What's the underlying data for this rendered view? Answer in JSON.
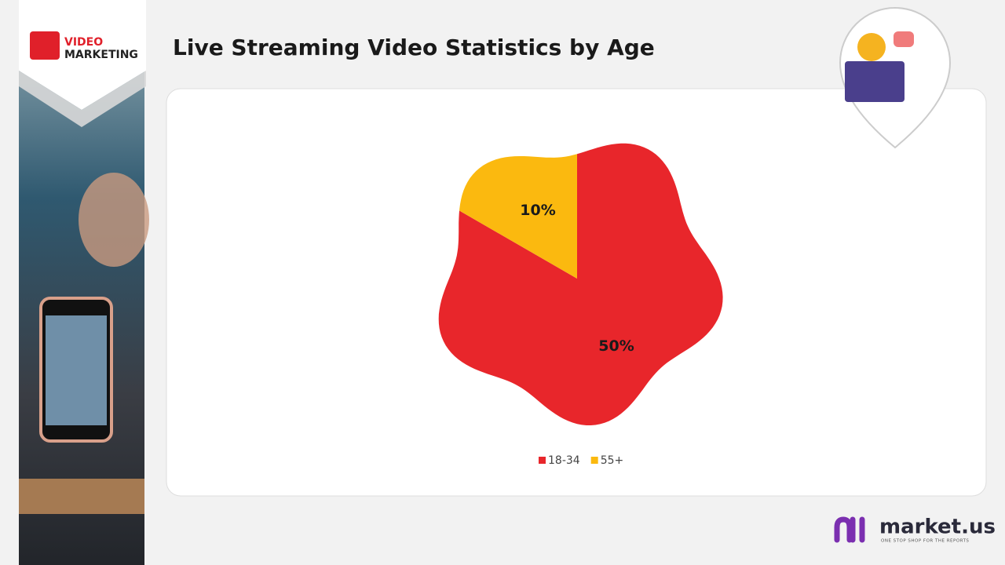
{
  "logo": {
    "line1": "VIDEO",
    "line2": "MARKETING"
  },
  "chart_data": {
    "type": "pie",
    "title": "Live Streaming Video Statistics by Age",
    "categories": [
      "18-34",
      "55+"
    ],
    "values": [
      50,
      10
    ],
    "value_labels": [
      "50%",
      "10%"
    ],
    "colors": [
      "#e8262b",
      "#fbb90f"
    ],
    "legend": "bottom"
  },
  "footer": {
    "brand": "market.us",
    "tagline": "ONE STOP SHOP FOR THE REPORTS"
  }
}
